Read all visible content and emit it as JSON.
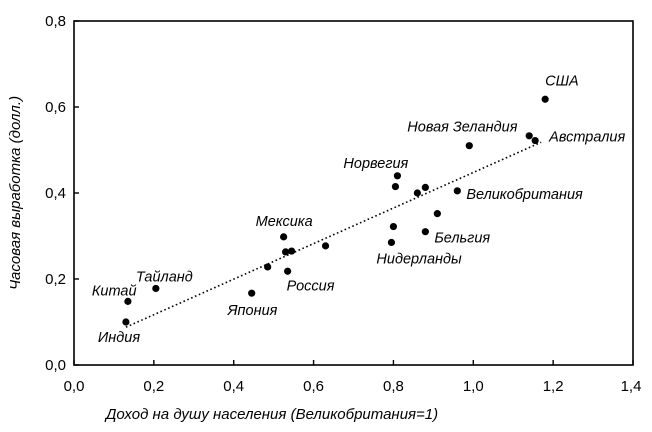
{
  "chart_data": {
    "type": "scatter",
    "xlabel": "Доход на душу населения (Великобритания=1)",
    "ylabel": "Часовая выработка (долл.)",
    "xlim": [
      0,
      1.4
    ],
    "ylim": [
      0,
      0.8
    ],
    "x_ticks": [
      0,
      0.2,
      0.4,
      0.6,
      0.8,
      1.0,
      1.2,
      1.4
    ],
    "x_tick_labels": [
      "0,0",
      "0,2",
      "0,4",
      "0,6",
      "0,8",
      "1,0",
      "1,2",
      "1,4"
    ],
    "y_ticks": [
      0,
      0.2,
      0.4,
      0.6,
      0.8
    ],
    "y_tick_labels": [
      "0,0",
      "0,2",
      "0,4",
      "0,6",
      "0,8"
    ],
    "trendline": {
      "style": "dotted",
      "from": [
        0.13,
        0.088
      ],
      "to": [
        1.17,
        0.518
      ]
    },
    "points": [
      {
        "x": 0.13,
        "y": 0.1,
        "label": "Индия"
      },
      {
        "x": 0.135,
        "y": 0.148,
        "label": "Китай"
      },
      {
        "x": 0.205,
        "y": 0.178,
        "label": "Тайланд"
      },
      {
        "x": 0.445,
        "y": 0.167,
        "label": "Япония"
      },
      {
        "x": 0.485,
        "y": 0.228,
        "label": ""
      },
      {
        "x": 0.525,
        "y": 0.298,
        "label": "Мексика"
      },
      {
        "x": 0.53,
        "y": 0.263,
        "label": ""
      },
      {
        "x": 0.545,
        "y": 0.265,
        "label": ""
      },
      {
        "x": 0.535,
        "y": 0.218,
        "label": "Россия"
      },
      {
        "x": 0.63,
        "y": 0.277,
        "label": ""
      },
      {
        "x": 0.795,
        "y": 0.285,
        "label": "Нидерланды"
      },
      {
        "x": 0.8,
        "y": 0.322,
        "label": ""
      },
      {
        "x": 0.805,
        "y": 0.415,
        "label": ""
      },
      {
        "x": 0.81,
        "y": 0.44,
        "label": "Норвегия"
      },
      {
        "x": 0.86,
        "y": 0.4,
        "label": ""
      },
      {
        "x": 0.88,
        "y": 0.413,
        "label": ""
      },
      {
        "x": 0.88,
        "y": 0.31,
        "label": "Бельгия"
      },
      {
        "x": 0.91,
        "y": 0.352,
        "label": ""
      },
      {
        "x": 0.96,
        "y": 0.405,
        "label": "Великобритания"
      },
      {
        "x": 0.99,
        "y": 0.51,
        "label": "Новая Зеландия"
      },
      {
        "x": 1.14,
        "y": 0.533,
        "label": ""
      },
      {
        "x": 1.155,
        "y": 0.522,
        "label": "Австралия"
      },
      {
        "x": 1.18,
        "y": 0.618,
        "label": "США"
      }
    ]
  }
}
